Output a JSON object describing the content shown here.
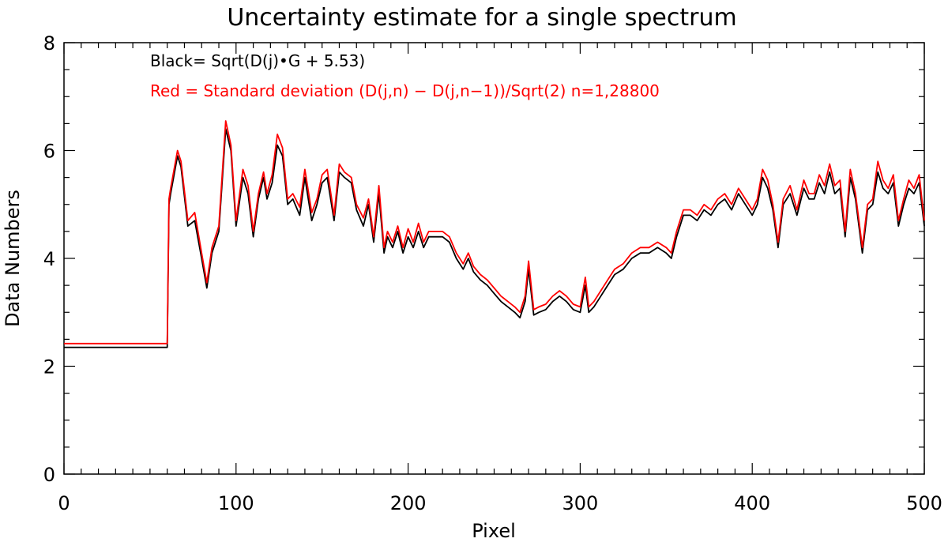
{
  "chart_data": {
    "type": "line",
    "title": "Uncertainty estimate for a single spectrum",
    "xlabel": "Pixel",
    "ylabel": "Data Numbers",
    "xlim": [
      0,
      500
    ],
    "ylim": [
      0,
      8
    ],
    "x_ticks": [
      0,
      100,
      200,
      300,
      400,
      500
    ],
    "x_tick_labels": [
      "0",
      "100",
      "200",
      "300",
      "400",
      "500"
    ],
    "y_ticks": [
      0,
      2,
      4,
      6,
      8
    ],
    "y_tick_labels": [
      "0",
      "2",
      "4",
      "6",
      "8"
    ],
    "grid": false,
    "annotations": [
      {
        "text": "Black= Sqrt(D(j)•G + 5.53)",
        "color": "#000000"
      },
      {
        "text": "Red = Standard deviation (D(j,n) − D(j,n−1))/Sqrt(2)  n=1,28800",
        "color": "#ff0000"
      }
    ],
    "series": [
      {
        "color": "#000000",
        "x": [
          0,
          60,
          61,
          62,
          66,
          68,
          72,
          76,
          80,
          83,
          86,
          90,
          94,
          97,
          100,
          104,
          107,
          110,
          113,
          116,
          118,
          121,
          124,
          127,
          130,
          133,
          137,
          140,
          144,
          147,
          150,
          153,
          157,
          160,
          163,
          167,
          170,
          174,
          177,
          180,
          183,
          186,
          188,
          191,
          194,
          197,
          200,
          203,
          206,
          209,
          212,
          216,
          220,
          224,
          228,
          232,
          235,
          238,
          242,
          246,
          250,
          254,
          258,
          262,
          265,
          268,
          270,
          273,
          276,
          280,
          284,
          288,
          292,
          296,
          300,
          303,
          305,
          308,
          312,
          316,
          320,
          325,
          330,
          335,
          340,
          345,
          350,
          353,
          356,
          360,
          364,
          368,
          372,
          376,
          380,
          384,
          388,
          392,
          396,
          400,
          403,
          406,
          409,
          412,
          415,
          418,
          422,
          426,
          430,
          433,
          436,
          439,
          442,
          445,
          448,
          451,
          454,
          457,
          460,
          464,
          467,
          470,
          473,
          476,
          479,
          482,
          485,
          488,
          491,
          494,
          497,
          500
        ],
        "y": [
          2.35,
          2.35,
          5.0,
          5.2,
          5.9,
          5.7,
          4.6,
          4.7,
          4.0,
          3.45,
          4.1,
          4.5,
          6.4,
          6.0,
          4.6,
          5.5,
          5.2,
          4.4,
          5.1,
          5.5,
          5.1,
          5.4,
          6.1,
          5.9,
          5.0,
          5.1,
          4.8,
          5.5,
          4.7,
          5.0,
          5.4,
          5.5,
          4.7,
          5.6,
          5.5,
          5.4,
          4.9,
          4.6,
          5.0,
          4.3,
          5.2,
          4.1,
          4.4,
          4.2,
          4.5,
          4.1,
          4.4,
          4.2,
          4.5,
          4.2,
          4.4,
          4.4,
          4.4,
          4.3,
          4.0,
          3.8,
          4.0,
          3.75,
          3.6,
          3.5,
          3.35,
          3.2,
          3.1,
          3.0,
          2.9,
          3.2,
          3.8,
          2.95,
          3.0,
          3.05,
          3.2,
          3.3,
          3.2,
          3.05,
          3.0,
          3.5,
          3.0,
          3.1,
          3.3,
          3.5,
          3.7,
          3.8,
          4.0,
          4.1,
          4.1,
          4.2,
          4.1,
          4.0,
          4.4,
          4.8,
          4.8,
          4.7,
          4.9,
          4.8,
          5.0,
          5.1,
          4.9,
          5.2,
          5.0,
          4.8,
          5.0,
          5.5,
          5.3,
          4.9,
          4.2,
          5.0,
          5.2,
          4.8,
          5.3,
          5.1,
          5.1,
          5.4,
          5.2,
          5.6,
          5.2,
          5.3,
          4.4,
          5.5,
          5.1,
          4.1,
          4.9,
          5.0,
          5.6,
          5.3,
          5.2,
          5.4,
          4.6,
          5.0,
          5.3,
          5.2,
          5.4,
          4.6
        ]
      },
      {
        "color": "#ff0000",
        "x": [
          0,
          60,
          61,
          62,
          66,
          68,
          72,
          76,
          80,
          83,
          86,
          90,
          94,
          97,
          100,
          104,
          107,
          110,
          113,
          116,
          118,
          121,
          124,
          127,
          130,
          133,
          137,
          140,
          144,
          147,
          150,
          153,
          157,
          160,
          163,
          167,
          170,
          174,
          177,
          180,
          183,
          186,
          188,
          191,
          194,
          197,
          200,
          203,
          206,
          209,
          212,
          216,
          220,
          224,
          228,
          232,
          235,
          238,
          242,
          246,
          250,
          254,
          258,
          262,
          265,
          268,
          270,
          273,
          276,
          280,
          284,
          288,
          292,
          296,
          300,
          303,
          305,
          308,
          312,
          316,
          320,
          325,
          330,
          335,
          340,
          345,
          350,
          353,
          356,
          360,
          364,
          368,
          372,
          376,
          380,
          384,
          388,
          392,
          396,
          400,
          403,
          406,
          409,
          412,
          415,
          418,
          422,
          426,
          430,
          433,
          436,
          439,
          442,
          445,
          448,
          451,
          454,
          457,
          460,
          464,
          467,
          470,
          473,
          476,
          479,
          482,
          485,
          488,
          491,
          494,
          497,
          500
        ],
        "y": [
          2.42,
          2.42,
          5.1,
          5.3,
          6.0,
          5.8,
          4.7,
          4.85,
          4.1,
          3.55,
          4.2,
          4.6,
          6.55,
          6.1,
          4.7,
          5.65,
          5.35,
          4.5,
          5.2,
          5.6,
          5.2,
          5.55,
          6.3,
          6.05,
          5.1,
          5.2,
          4.95,
          5.65,
          4.85,
          5.1,
          5.55,
          5.65,
          4.8,
          5.75,
          5.6,
          5.5,
          5.0,
          4.75,
          5.1,
          4.4,
          5.35,
          4.2,
          4.5,
          4.3,
          4.6,
          4.2,
          4.55,
          4.3,
          4.65,
          4.3,
          4.5,
          4.5,
          4.5,
          4.4,
          4.1,
          3.9,
          4.1,
          3.85,
          3.7,
          3.6,
          3.45,
          3.3,
          3.2,
          3.1,
          3.0,
          3.3,
          3.95,
          3.05,
          3.1,
          3.15,
          3.3,
          3.4,
          3.3,
          3.15,
          3.1,
          3.65,
          3.1,
          3.2,
          3.4,
          3.6,
          3.8,
          3.9,
          4.1,
          4.2,
          4.2,
          4.3,
          4.2,
          4.1,
          4.5,
          4.9,
          4.9,
          4.8,
          5.0,
          4.9,
          5.1,
          5.2,
          5.0,
          5.3,
          5.1,
          4.9,
          5.1,
          5.65,
          5.45,
          5.0,
          4.3,
          5.1,
          5.35,
          4.9,
          5.45,
          5.2,
          5.2,
          5.55,
          5.35,
          5.75,
          5.35,
          5.45,
          4.5,
          5.65,
          5.2,
          4.2,
          5.0,
          5.1,
          5.8,
          5.45,
          5.3,
          5.55,
          4.7,
          5.1,
          5.45,
          5.3,
          5.55,
          4.7
        ]
      }
    ]
  }
}
